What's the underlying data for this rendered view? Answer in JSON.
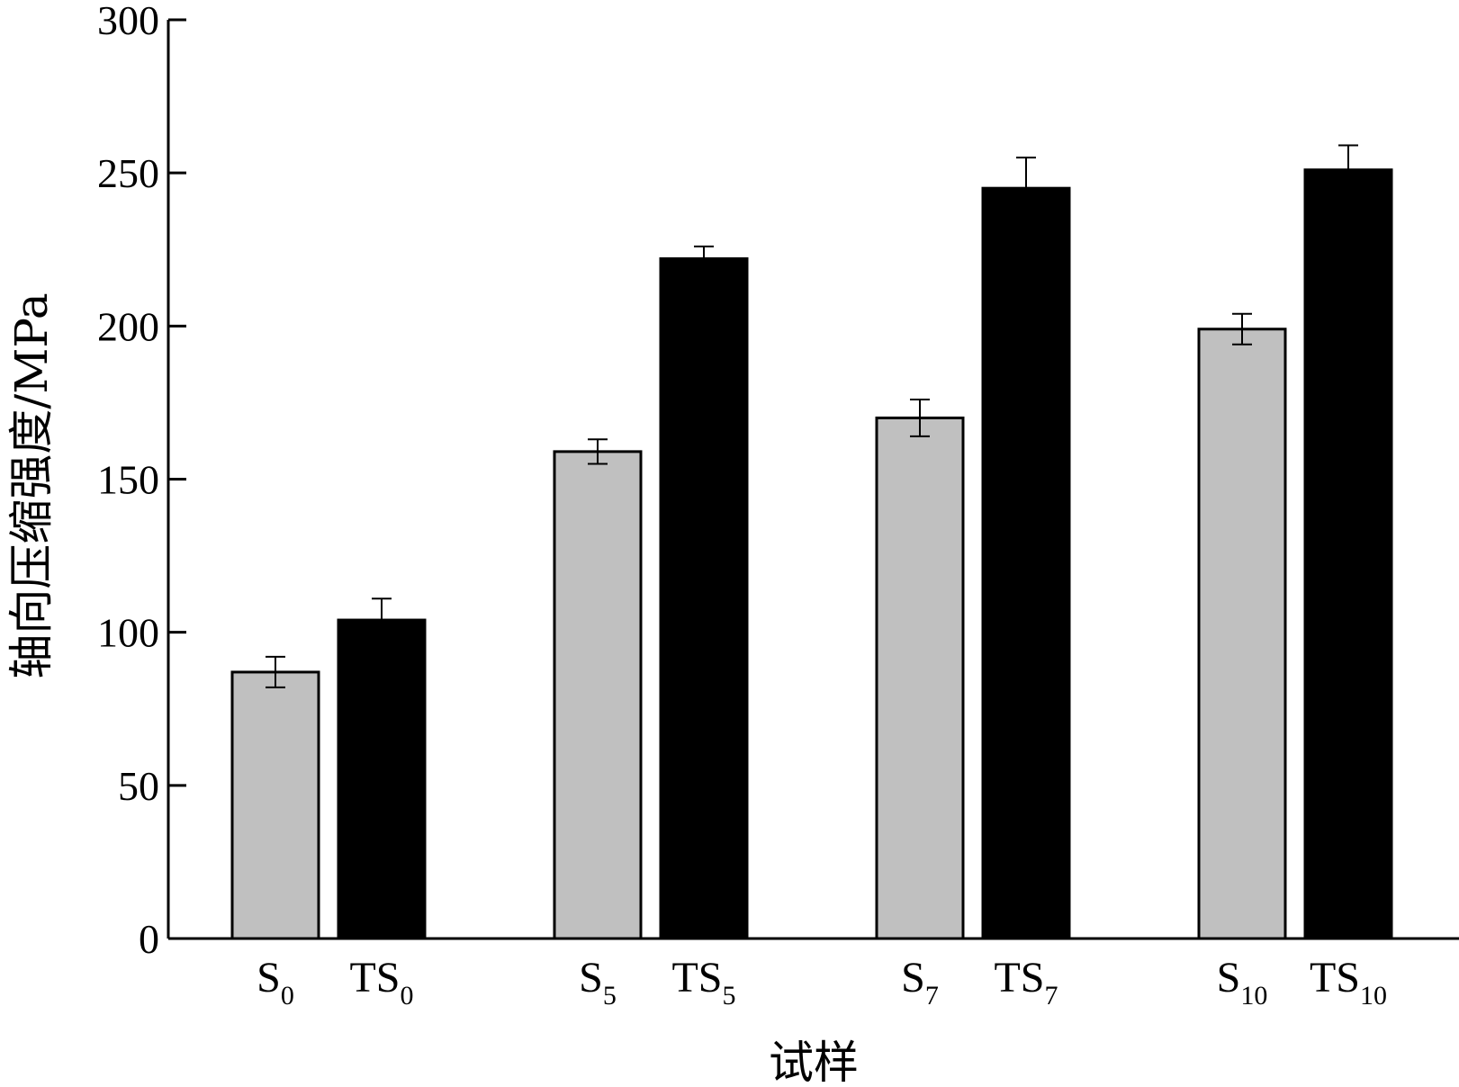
{
  "chart_data": {
    "type": "bar",
    "xlabel": "试样",
    "ylabel": "轴向压缩强度/MPa",
    "ylim": [
      0,
      300
    ],
    "yticks": [
      0,
      50,
      100,
      150,
      200,
      250,
      300
    ],
    "grid": false,
    "groups": [
      {
        "bars": [
          {
            "label_main": "S",
            "label_sub": "0",
            "value": 87,
            "error": 5,
            "color": "#c0c0c0"
          },
          {
            "label_main": "TS",
            "label_sub": "0",
            "value": 104,
            "error": 7,
            "color": "#000000"
          }
        ]
      },
      {
        "bars": [
          {
            "label_main": "S",
            "label_sub": "5",
            "value": 159,
            "error": 4,
            "color": "#c0c0c0"
          },
          {
            "label_main": "TS",
            "label_sub": "5",
            "value": 222,
            "error": 4,
            "color": "#000000"
          }
        ]
      },
      {
        "bars": [
          {
            "label_main": "S",
            "label_sub": "7",
            "value": 170,
            "error": 6,
            "color": "#c0c0c0"
          },
          {
            "label_main": "TS",
            "label_sub": "7",
            "value": 245,
            "error": 10,
            "color": "#000000"
          }
        ]
      },
      {
        "bars": [
          {
            "label_main": "S",
            "label_sub": "10",
            "value": 199,
            "error": 5,
            "color": "#c0c0c0"
          },
          {
            "label_main": "TS",
            "label_sub": "10",
            "value": 251,
            "error": 8,
            "color": "#000000"
          }
        ]
      }
    ]
  }
}
